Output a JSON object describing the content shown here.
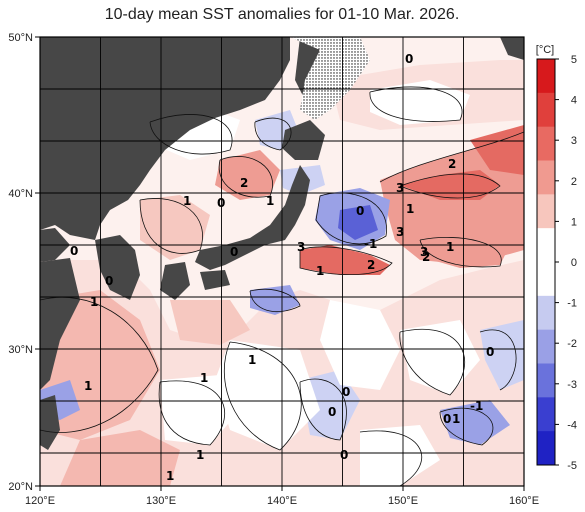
{
  "title": "10-day mean SST anomalies for 01-10 Mar. 2026.",
  "colorbar": {
    "unit": "[°C]",
    "ticks": [
      "5",
      "4",
      "3",
      "2",
      "1",
      "0",
      "-1",
      "-2",
      "-3",
      "-4",
      "-5"
    ],
    "colors": [
      "#d7191c",
      "#e0403c",
      "#e86a62",
      "#f09a90",
      "#f7c6bd",
      "#ffffff",
      "#ffffff",
      "#c6cbf0",
      "#9aa0e6",
      "#6a72dc",
      "#3a3fd0",
      "#1f22c4"
    ]
  },
  "axes": {
    "lon_labels": [
      "120°E",
      "130°E",
      "140°E",
      "150°E",
      "160°E"
    ],
    "lat_labels": [
      "50°N",
      "40°N",
      "30°N",
      "20°N"
    ]
  },
  "map_colors": {
    "land": "#474747",
    "ice": "#bdbdbd",
    "warm_light": "#f6c8c0",
    "warm_mid": "#ee9c93",
    "warm_strong": "#e46a62",
    "cool_light": "#cdd2f3",
    "cool_mid": "#9aa1e6",
    "cool_strong": "#5a61d6"
  },
  "contour_labels": [
    "0",
    "2",
    "1",
    "0",
    "1",
    "2",
    "0",
    "1",
    "3",
    "1",
    "3",
    "0",
    "3",
    "-1",
    "2",
    "2",
    "1",
    "1",
    "0",
    "1",
    "1",
    "0",
    "1",
    "0",
    "0",
    "0",
    "1",
    "-1",
    "0",
    "0",
    "1",
    "3",
    "1"
  ]
}
